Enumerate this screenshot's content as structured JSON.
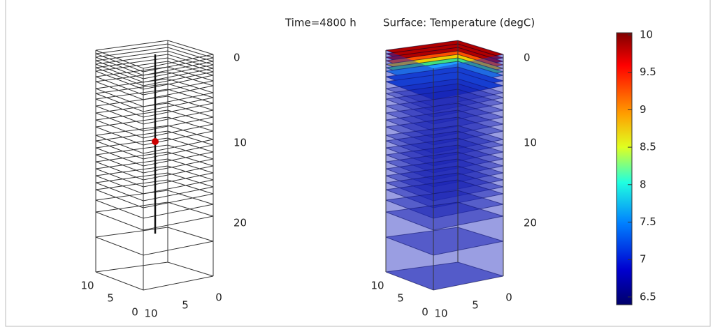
{
  "title_time": "Time=4800 h",
  "title_surface": "Surface: Temperature (degC)",
  "left_plot": {
    "z_ticks": [
      "0",
      "10",
      "20"
    ],
    "x_ticks": [
      "10",
      "5",
      "0"
    ],
    "y_ticks": [
      "10",
      "5",
      "0"
    ]
  },
  "right_plot": {
    "z_ticks": [
      "0",
      "10",
      "20"
    ],
    "x_ticks": [
      "10",
      "5",
      "0"
    ],
    "y_ticks": [
      "10",
      "5",
      "0"
    ]
  },
  "colorbar": {
    "ticks": [
      "10",
      "9.5",
      "9",
      "8.5",
      "8",
      "7.5",
      "7",
      "6.5"
    ]
  }
}
